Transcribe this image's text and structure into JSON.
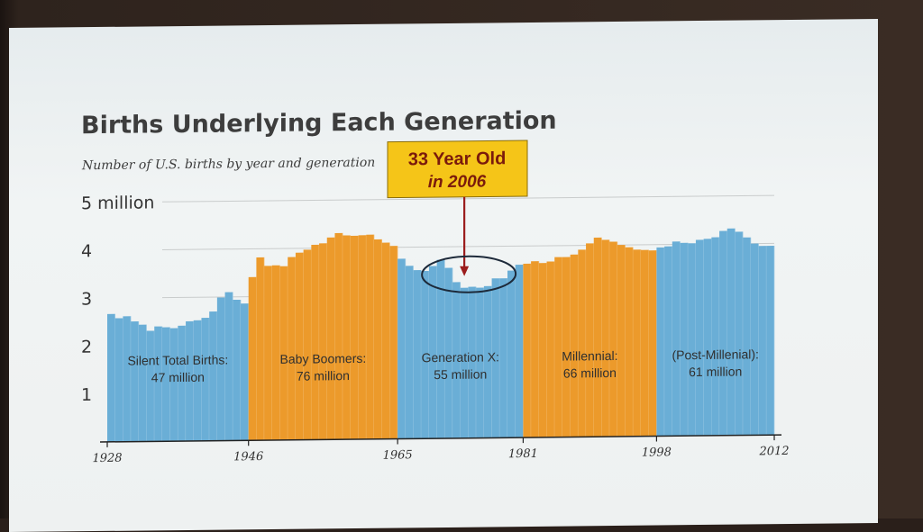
{
  "chart_data": {
    "type": "bar",
    "title": "Births Underlying Each Generation",
    "subtitle": "Number of U.S. births by year and generation",
    "ylabel": "",
    "xlabel": "",
    "ylim": [
      0,
      5
    ],
    "ytick_labels": [
      {
        "value": 1,
        "label": "1"
      },
      {
        "value": 2,
        "label": "2"
      },
      {
        "value": 3,
        "label": "3"
      },
      {
        "value": 4,
        "label": "4"
      },
      {
        "value": 5,
        "label": "5 million"
      }
    ],
    "xtick_labels": [
      "1928",
      "1946",
      "1965",
      "1981",
      "1998",
      "2012"
    ],
    "x": [
      1928,
      1929,
      1930,
      1931,
      1932,
      1933,
      1934,
      1935,
      1936,
      1937,
      1938,
      1939,
      1940,
      1941,
      1942,
      1943,
      1944,
      1945,
      1946,
      1947,
      1948,
      1949,
      1950,
      1951,
      1952,
      1953,
      1954,
      1955,
      1956,
      1957,
      1958,
      1959,
      1960,
      1961,
      1962,
      1963,
      1964,
      1965,
      1966,
      1967,
      1968,
      1969,
      1970,
      1971,
      1972,
      1973,
      1974,
      1975,
      1976,
      1977,
      1978,
      1979,
      1980,
      1981,
      1982,
      1983,
      1984,
      1985,
      1986,
      1987,
      1988,
      1989,
      1990,
      1991,
      1992,
      1993,
      1994,
      1995,
      1996,
      1997,
      1998,
      1999,
      2000,
      2001,
      2002,
      2003,
      2004,
      2005,
      2006,
      2007,
      2008,
      2009,
      2010,
      2011,
      2012
    ],
    "values": [
      2.67,
      2.58,
      2.62,
      2.51,
      2.44,
      2.31,
      2.4,
      2.38,
      2.36,
      2.41,
      2.5,
      2.52,
      2.57,
      2.7,
      2.99,
      3.1,
      2.94,
      2.86,
      3.41,
      3.82,
      3.64,
      3.65,
      3.63,
      3.82,
      3.91,
      3.97,
      4.07,
      4.1,
      4.22,
      4.31,
      4.26,
      4.25,
      4.26,
      4.27,
      4.17,
      4.1,
      4.03,
      3.76,
      3.61,
      3.52,
      3.5,
      3.6,
      3.73,
      3.56,
      3.26,
      3.14,
      3.16,
      3.14,
      3.17,
      3.33,
      3.33,
      3.49,
      3.61,
      3.63,
      3.68,
      3.64,
      3.67,
      3.76,
      3.76,
      3.81,
      3.91,
      4.04,
      4.16,
      4.11,
      4.07,
      4.0,
      3.95,
      3.9,
      3.89,
      3.88,
      3.94,
      3.96,
      4.06,
      4.03,
      4.02,
      4.09,
      4.11,
      4.14,
      4.27,
      4.32,
      4.25,
      4.13,
      4.0,
      3.95,
      3.95
    ],
    "segments": [
      {
        "name": "Silent Total Births:",
        "total": "47 million",
        "start": 1928,
        "end": 1945,
        "color": "#6aaed6"
      },
      {
        "name": "Baby Boomers:",
        "total": "76 million",
        "start": 1946,
        "end": 1964,
        "color": "#ec9a2b"
      },
      {
        "name": "Generation X:",
        "total": "55 million",
        "start": 1965,
        "end": 1980,
        "color": "#6aaed6"
      },
      {
        "name": "Millennial:",
        "total": "66 million",
        "start": 1981,
        "end": 1997,
        "color": "#ec9a2b"
      },
      {
        "name": "(Post-Millenial):",
        "total": "61 million",
        "start": 1998,
        "end": 2012,
        "color": "#6aaed6"
      }
    ],
    "annotation": {
      "line1": "33 Year Old",
      "line2": "in 2006",
      "target_year": 1973,
      "box_color": "#f5c518",
      "arrow_color": "#9b1c1c"
    },
    "grid": true,
    "legend": "none"
  }
}
